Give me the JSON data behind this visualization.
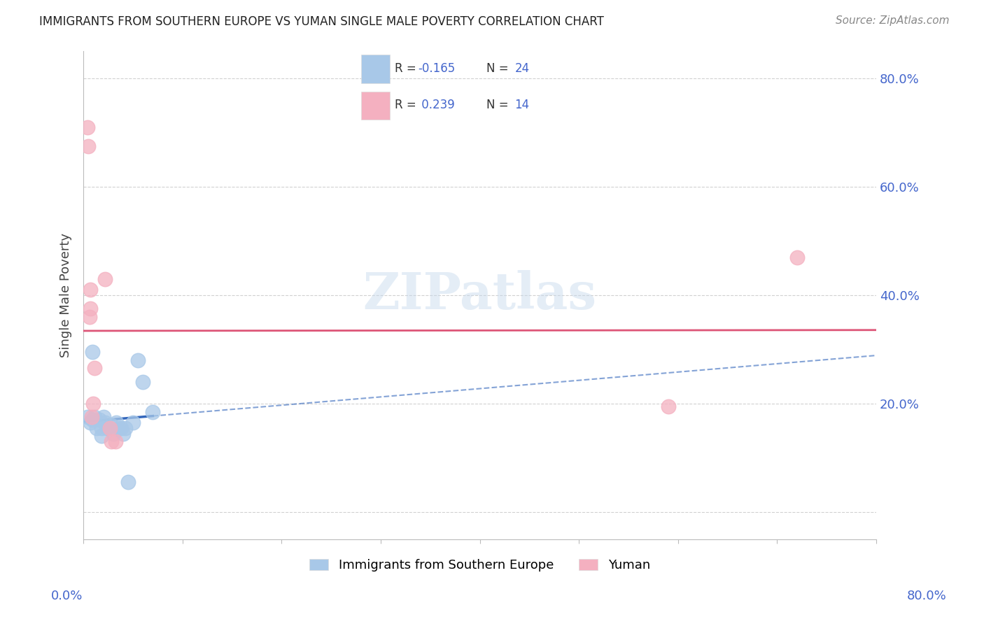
{
  "title": "IMMIGRANTS FROM SOUTHERN EUROPE VS YUMAN SINGLE MALE POVERTY CORRELATION CHART",
  "source": "Source: ZipAtlas.com",
  "ylabel": "Single Male Poverty",
  "legend_label1": "Immigrants from Southern Europe",
  "legend_label2": "Yuman",
  "xlim": [
    0.0,
    0.8
  ],
  "ylim": [
    -0.05,
    0.85
  ],
  "yticks": [
    0.0,
    0.2,
    0.4,
    0.6,
    0.8
  ],
  "grid_color": "#cccccc",
  "watermark": "ZIPatlas",
  "blue_color": "#a8c8e8",
  "pink_color": "#f4b0c0",
  "blue_line_color": "#3366bb",
  "pink_line_color": "#dd5577",
  "label_color": "#4466cc",
  "blue_scatter": [
    [
      0.004,
      0.175
    ],
    [
      0.007,
      0.165
    ],
    [
      0.009,
      0.17
    ],
    [
      0.011,
      0.175
    ],
    [
      0.013,
      0.155
    ],
    [
      0.016,
      0.17
    ],
    [
      0.018,
      0.155
    ],
    [
      0.02,
      0.175
    ],
    [
      0.022,
      0.165
    ],
    [
      0.024,
      0.155
    ],
    [
      0.028,
      0.16
    ],
    [
      0.03,
      0.145
    ],
    [
      0.033,
      0.165
    ],
    [
      0.036,
      0.155
    ],
    [
      0.038,
      0.155
    ],
    [
      0.04,
      0.145
    ],
    [
      0.042,
      0.155
    ],
    [
      0.05,
      0.165
    ],
    [
      0.055,
      0.28
    ],
    [
      0.06,
      0.24
    ],
    [
      0.07,
      0.185
    ],
    [
      0.009,
      0.295
    ],
    [
      0.045,
      0.055
    ],
    [
      0.018,
      0.14
    ]
  ],
  "pink_scatter": [
    [
      0.004,
      0.71
    ],
    [
      0.005,
      0.675
    ],
    [
      0.006,
      0.36
    ],
    [
      0.007,
      0.41
    ],
    [
      0.007,
      0.375
    ],
    [
      0.008,
      0.175
    ],
    [
      0.01,
      0.2
    ],
    [
      0.011,
      0.265
    ],
    [
      0.022,
      0.43
    ],
    [
      0.027,
      0.155
    ],
    [
      0.028,
      0.13
    ],
    [
      0.032,
      0.13
    ],
    [
      0.59,
      0.195
    ],
    [
      0.72,
      0.47
    ]
  ],
  "background_color": "#ffffff"
}
